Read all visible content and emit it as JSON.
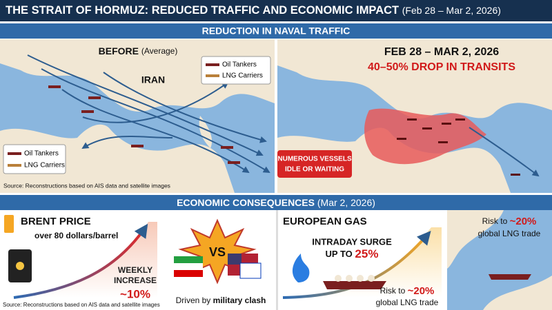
{
  "header": {
    "title": "THE STRAIT OF HORMUZ: REDUCED TRAFFIC AND ECONOMIC IMPACT",
    "date": "(Feb 28 – Mar 2, 2026)"
  },
  "naval_traffic": {
    "heading": "REDUCTION IN NAVAL TRAFFIC",
    "before": {
      "label": "BEFORE",
      "qualifier": "(Average)",
      "region": "IRAN",
      "legend": [
        "Oil Tankers",
        "LNG Carriers"
      ],
      "legend_bottom": [
        "Oil Tankers",
        "LNG Carriers"
      ],
      "source": "Source: Reconstructions based on AIS data and satellite images"
    },
    "after": {
      "period": "FEB 28 – MAR 2, 2026",
      "headline": "40–50% DROP IN TRANSITS",
      "callout": [
        "NUMEROUS VESSELS",
        "IDLE OR WAITING"
      ]
    }
  },
  "economic": {
    "heading": "ECONOMIC CONSEQUENCES",
    "date": "(Mar 2, 2026)",
    "brent": {
      "title": "BRENT PRICE",
      "subtitle": "over 80 dollars/barrel",
      "change_label": [
        "WEEKLY",
        "INCREASE"
      ],
      "change_value": "~10%",
      "source": "Source: Reconstructions based on AIS data and satellite images"
    },
    "conflict": {
      "badge": "VS",
      "caption": "Driven by",
      "caption_bold": "military clash"
    },
    "gas": {
      "title": "EUROPEAN GAS",
      "surge": [
        "INTRADAY SURGE",
        "UP TO"
      ],
      "surge_value": "25%",
      "risk": [
        "Risk to",
        "~20%",
        "global LNG trade"
      ]
    },
    "lng_map": {
      "risk": [
        "Risk to",
        "~20%",
        "global LNG trade"
      ]
    }
  }
}
